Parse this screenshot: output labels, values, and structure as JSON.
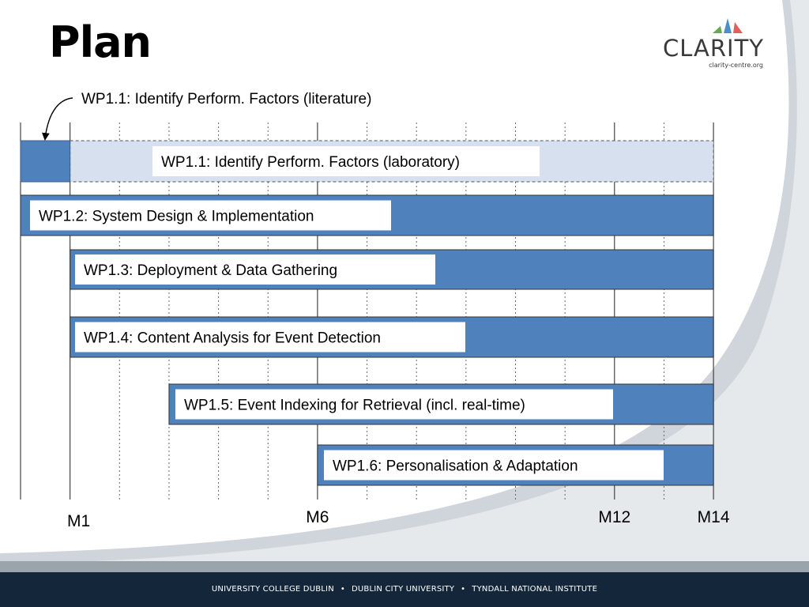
{
  "slide": {
    "title": "Plan",
    "logo": {
      "name": "CLARITY",
      "url": "clarity-centre.org"
    },
    "footer": {
      "items": [
        "UNIVERSITY COLLEGE DUBLIN",
        "DUBLIN CITY UNIVERSITY",
        "TYNDALL NATIONAL INSTITUTE"
      ],
      "separator": "•"
    }
  },
  "chart_data": {
    "type": "gantt",
    "time_unit": "month",
    "x_range": [
      0,
      14
    ],
    "gridlines": "every month, dashed",
    "annotation": {
      "text": "WP1.1: Identify Perform. Factors (literature)",
      "points_to_task": "WP1.1"
    },
    "milestones": [
      {
        "label": "M1",
        "month": 1
      },
      {
        "label": "M6",
        "month": 6
      },
      {
        "label": "M12",
        "month": 12
      },
      {
        "label": "M14",
        "month": 14
      }
    ],
    "tasks": [
      {
        "id": "WP1.1",
        "label": "WP1.1: Identify Perform. Factors (laboratory)",
        "solid_start": 0,
        "solid_end": 1,
        "outline_start": 1,
        "outline_end": 14
      },
      {
        "id": "WP1.2",
        "label": "WP1.2: System Design & Implementation",
        "start": 0,
        "end": 14
      },
      {
        "id": "WP1.3",
        "label": "WP1.3: Deployment & Data Gathering",
        "start": 1,
        "end": 14
      },
      {
        "id": "WP1.4",
        "label": "WP1.4: Content Analysis for Event Detection",
        "start": 1,
        "end": 14
      },
      {
        "id": "WP1.5",
        "label": "WP1.5: Event Indexing for Retrieval (incl. real-time)",
        "start": 3,
        "end": 14
      },
      {
        "id": "WP1.6",
        "label": "WP1.6: Personalisation & Adaptation",
        "start": 6,
        "end": 14
      }
    ],
    "colors": {
      "bar": "#4f81bd",
      "bar_outline": "#385d8a",
      "planned_fill": "#d6e0ee",
      "label_box": "#ffffff",
      "grid": "#555555"
    }
  }
}
